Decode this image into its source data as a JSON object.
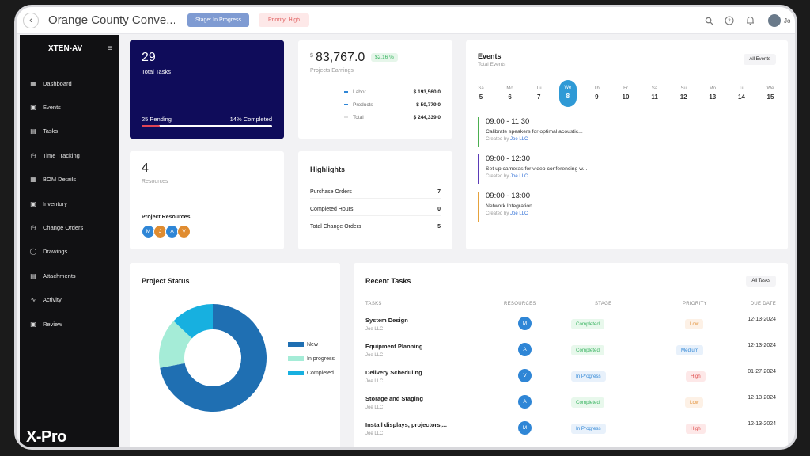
{
  "header": {
    "project_title": "Orange County Conve...",
    "stage_badge": "Stage: In Progress",
    "priority_badge": "Priority: High",
    "user_name": "Jo"
  },
  "sidebar": {
    "brand": "XTEN-AV",
    "items": [
      {
        "label": "Dashboard",
        "icon": "dashboard-icon"
      },
      {
        "label": "Events",
        "icon": "calendar-icon"
      },
      {
        "label": "Tasks",
        "icon": "tasks-icon"
      },
      {
        "label": "Time Tracking",
        "icon": "clock-icon"
      },
      {
        "label": "BOM Details",
        "icon": "bom-icon"
      },
      {
        "label": "Inventory",
        "icon": "inventory-icon"
      },
      {
        "label": "Change Orders",
        "icon": "change-orders-icon"
      },
      {
        "label": "Drawings",
        "icon": "drawings-icon"
      },
      {
        "label": "Attachments",
        "icon": "attachment-icon"
      },
      {
        "label": "Activity",
        "icon": "activity-icon"
      },
      {
        "label": "Review",
        "icon": "review-icon"
      }
    ],
    "logo": "X-Pro"
  },
  "tasks_card": {
    "total": "29",
    "label": "Total Tasks",
    "pending": "25 Pending",
    "completed": "14% Completed",
    "progress_fraction": 0.14
  },
  "earnings_card": {
    "currency": "$",
    "amount": "83,767.0",
    "change": "$2.16 %",
    "label": "Projects Earnings",
    "rows": [
      {
        "label": "Labor",
        "value": "$ 193,560.0",
        "color": "#2f86d6"
      },
      {
        "label": "Products",
        "value": "$ 50,779.0",
        "color": "#2f86d6"
      },
      {
        "label": "Total",
        "value": "$ 244,339.0",
        "color": "#e0e0e0"
      }
    ]
  },
  "events_card": {
    "title": "Events",
    "subtitle": "Total Events",
    "all_button": "All Events",
    "days": [
      {
        "name": "Sa",
        "date": "5"
      },
      {
        "name": "Mo",
        "date": "6"
      },
      {
        "name": "Tu",
        "date": "7"
      },
      {
        "name": "We",
        "date": "8",
        "active": true
      },
      {
        "name": "Th",
        "date": "9"
      },
      {
        "name": "Fr",
        "date": "10"
      },
      {
        "name": "Sa",
        "date": "11"
      },
      {
        "name": "Su",
        "date": "12"
      },
      {
        "name": "Mo",
        "date": "13"
      },
      {
        "name": "Tu",
        "date": "14"
      },
      {
        "name": "We",
        "date": "15"
      }
    ],
    "events": [
      {
        "time": "09:00 - 11:30",
        "desc": "Calibrate speakers for optimal acoustic...",
        "by_prefix": "Created by",
        "by": "Joe LLC",
        "color": "#4caf50"
      },
      {
        "time": "09:00 - 12:30",
        "desc": "Set up cameras for video conferencing w...",
        "by_prefix": "Created by",
        "by": "Joe LLC",
        "color": "#5b3bb7"
      },
      {
        "time": "09:00 - 13:00",
        "desc": "Network Integration",
        "by_prefix": "Created by",
        "by": "Joe LLC",
        "color": "#e6a23c"
      }
    ]
  },
  "resources_card": {
    "count": "4",
    "label": "Resources",
    "section": "Project Resources",
    "avatars": [
      {
        "letter": "M",
        "color": "#2f86d6"
      },
      {
        "letter": "J",
        "color": "#e08c30"
      },
      {
        "letter": "A",
        "color": "#2f86d6"
      },
      {
        "letter": "V",
        "color": "#e08c30"
      }
    ]
  },
  "highlights_card": {
    "title": "Highlights",
    "rows": [
      {
        "label": "Purchase Orders",
        "value": "7"
      },
      {
        "label": "Completed Hours",
        "value": "0"
      },
      {
        "label": "Total Change Orders",
        "value": "5"
      }
    ]
  },
  "project_status": {
    "title": "Project Status",
    "chart_data": {
      "type": "pie",
      "categories": [
        "New",
        "In progress",
        "Completed"
      ],
      "values": [
        72,
        15,
        13
      ],
      "colors": [
        "#1f6fb2",
        "#a5ecd7",
        "#17b0e0"
      ]
    }
  },
  "recent_tasks": {
    "title": "Recent Tasks",
    "all_button": "All Tasks",
    "headers": [
      "TASKS",
      "RESOURCES",
      "STAGE",
      "PRIORITY",
      "DUE DATE"
    ],
    "rows": [
      {
        "task": "System Design",
        "client": "Joe LLC",
        "resource": "M",
        "stage": "Completed",
        "priority": "Low",
        "due": "12-13-2024"
      },
      {
        "task": "Equipment Planning",
        "client": "Joe LLC",
        "resource": "A",
        "stage": "Completed",
        "priority": "Medium",
        "due": "12-13-2024"
      },
      {
        "task": "Delivery Scheduling",
        "client": "Joe LLC",
        "resource": "V",
        "stage": "In Progress",
        "priority": "High",
        "due": "01-27-2024"
      },
      {
        "task": "Storage and Staging",
        "client": "Joe LLC",
        "resource": "A",
        "stage": "Completed",
        "priority": "Low",
        "due": "12-13-2024"
      },
      {
        "task": "Install displays, projectors,...",
        "client": "Joe LLC",
        "resource": "M",
        "stage": "In Progress",
        "priority": "High",
        "due": "12-13-2024"
      }
    ]
  }
}
